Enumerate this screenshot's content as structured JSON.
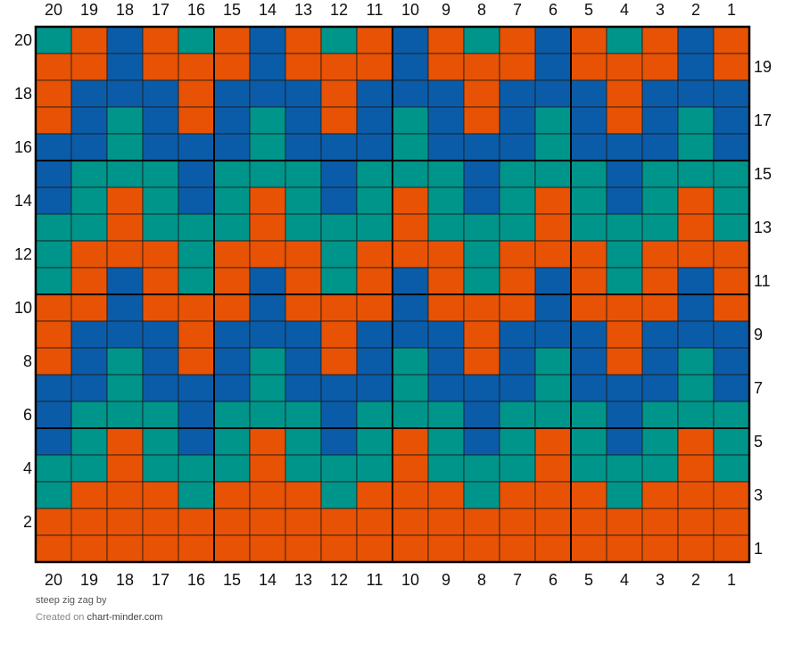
{
  "chart_data": {
    "type": "heatmap",
    "columns": 20,
    "rows": 20,
    "colors": {
      "O": "#e75204",
      "B": "#0b5ca8",
      "T": "#00958a",
      "line": "#1a1a1a",
      "section_line": "#000000"
    },
    "col_labels": [
      "20",
      "19",
      "18",
      "17",
      "16",
      "15",
      "14",
      "13",
      "12",
      "11",
      "10",
      "9",
      "8",
      "7",
      "6",
      "5",
      "4",
      "3",
      "2",
      "1"
    ],
    "left_row_labels": [
      "20",
      "",
      "18",
      "",
      "16",
      "",
      "14",
      "",
      "12",
      "",
      "10",
      "",
      "8",
      "",
      "6",
      "",
      "4",
      "",
      "2",
      ""
    ],
    "right_row_labels": [
      "",
      "19",
      "",
      "17",
      "",
      "15",
      "",
      "13",
      "",
      "11",
      "",
      "9",
      "",
      "7",
      "",
      "5",
      "",
      "3",
      "",
      "1"
    ],
    "grid": [
      "TOBOTOBOTOBOTOBOTOBO",
      "OOBOOOBOOOBOOOBOOOBO",
      "OBBBOBBBOBBBOBBBOBBB",
      "OBTBOBTBOBTBOBTBOBTB",
      "BBTBBBTBBBTBBBTBBBTB",
      "BTTTBTTTBTTTBTTTBTTT",
      "BTOTBTOTBTOTBTOTBTOT",
      "TTOTTTOTTTOTTTOTTTOT",
      "TOOOTOOOTOOOTOOOTOOO",
      "TOBOTOBOTOBOTOBOTOBO",
      "OOBOOOBOOOBOOOBOOOBO",
      "OBBBOBBBOBBBOBBBOBBB",
      "OBTBOBTBOBTBOBTBOBTB",
      "BBTBBBTBBBTBBBTBBBTB",
      "BTTTBTTTBTTTBTTTBTTT",
      "BTOTBTOTBTOTBTOTBTOT",
      "TTOTTTOTTTOTTTOTTTOT",
      "TOOOTOOOTOOOTOOOTOOO",
      "OOOOOOOOOOOOOOOOOOOO",
      "OOOOOOOOOOOOOOOOOOOO"
    ]
  },
  "caption": {
    "title": "steep zig zag",
    "by": "by",
    "created_on": "Created on",
    "site": "chart-minder.com"
  }
}
